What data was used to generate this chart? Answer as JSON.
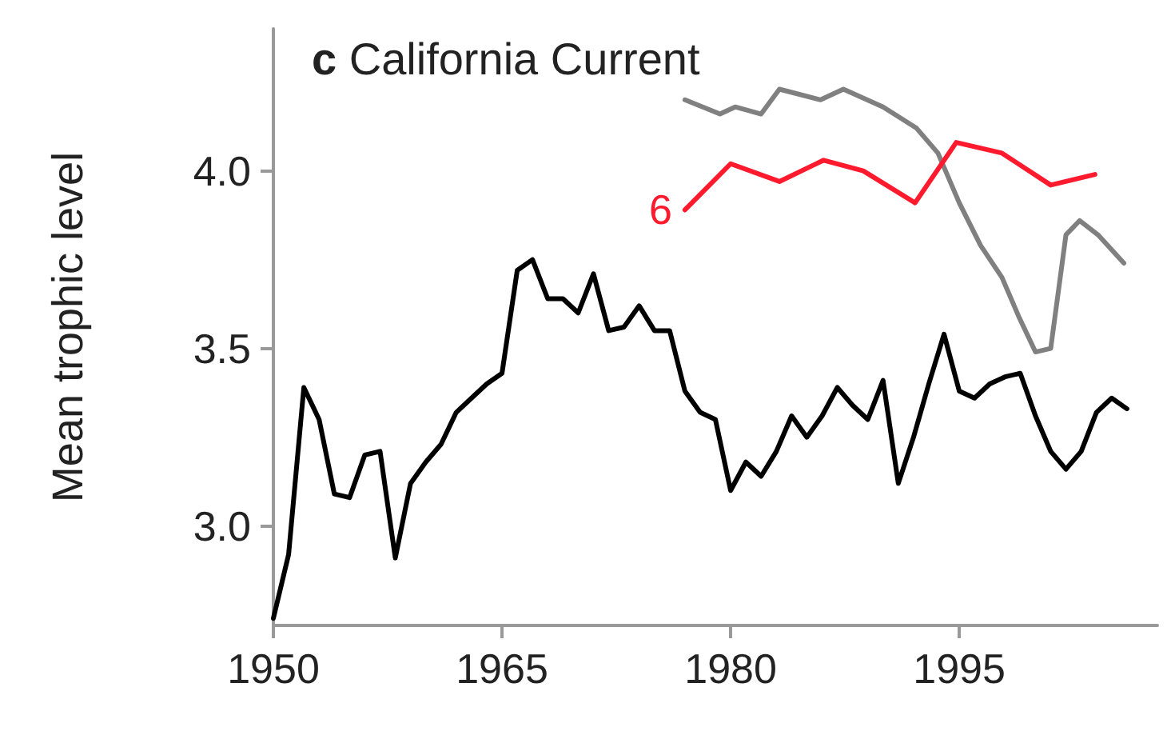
{
  "chart_data": {
    "type": "line",
    "title": "c California Current",
    "ylabel": "Mean trophic level",
    "xlim": [
      1950,
      2008
    ],
    "xticks": [
      1950,
      1965,
      1980,
      1995
    ],
    "ylim": [
      2.72,
      4.4
    ],
    "yticks": [
      {
        "value": 3,
        "label": "3.0"
      },
      {
        "value": 3.5,
        "label": "3.5"
      },
      {
        "value": 4,
        "label": "4.0"
      }
    ],
    "grid": false,
    "marker": "none",
    "line_style": "solid",
    "annotations": [
      {
        "text": "6",
        "x": 1977,
        "y": 3.89
      }
    ],
    "series": [
      {
        "color": "#000000",
        "x": [
          1950,
          1951,
          1952,
          1953,
          1954,
          1955,
          1956,
          1957,
          1958,
          1959,
          1960,
          1961,
          1962,
          1963,
          1964,
          1965,
          1966,
          1967,
          1968,
          1969,
          1970,
          1971,
          1972,
          1973,
          1974,
          1975,
          1976,
          1977,
          1978,
          1979,
          1980,
          1981,
          1982,
          1983,
          1984,
          1985,
          1986,
          1987,
          1988,
          1989,
          1990,
          1991,
          1992,
          1993,
          1994,
          1995,
          1996,
          1997,
          1998,
          1999,
          2000,
          2001,
          2002,
          2003,
          2004,
          2005,
          2006
        ],
        "values": [
          2.74,
          2.92,
          3.39,
          3.3,
          3.09,
          3.08,
          3.2,
          3.21,
          2.91,
          3.12,
          3.18,
          3.23,
          3.32,
          3.36,
          3.4,
          3.43,
          3.72,
          3.75,
          3.64,
          3.64,
          3.6,
          3.71,
          3.55,
          3.56,
          3.62,
          3.55,
          3.55,
          3.38,
          3.32,
          3.3,
          3.1,
          3.18,
          3.14,
          3.21,
          3.31,
          3.25,
          3.31,
          3.39,
          3.34,
          3.3,
          3.41,
          3.12,
          3.25,
          3.4,
          3.54,
          3.38,
          3.36,
          3.4,
          3.42,
          3.43,
          3.31,
          3.21,
          3.16,
          3.21,
          3.32,
          3.36,
          3.33
        ]
      },
      {
        "color": "#808080",
        "x": [
          1977,
          1979.3,
          1980.3,
          1982,
          1983.2,
          1985.9,
          1987.4,
          1990,
          1992.2,
          1993.6,
          1995,
          1996.4,
          1997.8,
          1998.9,
          2000,
          2001,
          2002,
          2002.9,
          2004.1,
          2005.8
        ],
        "values": [
          4.2,
          4.16,
          4.18,
          4.16,
          4.23,
          4.2,
          4.23,
          4.18,
          4.12,
          4.05,
          3.91,
          3.79,
          3.7,
          3.59,
          3.49,
          3.5,
          3.82,
          3.86,
          3.82,
          3.74
        ]
      },
      {
        "color": "#ff1a2e",
        "x": [
          1977,
          1980,
          1983.2,
          1986.1,
          1988.7,
          1992.1,
          1994.8,
          1997.8,
          2001,
          2003.9
        ],
        "values": [
          3.89,
          4.02,
          3.97,
          4.03,
          4.0,
          3.91,
          4.08,
          4.05,
          3.96,
          3.99
        ]
      }
    ]
  }
}
